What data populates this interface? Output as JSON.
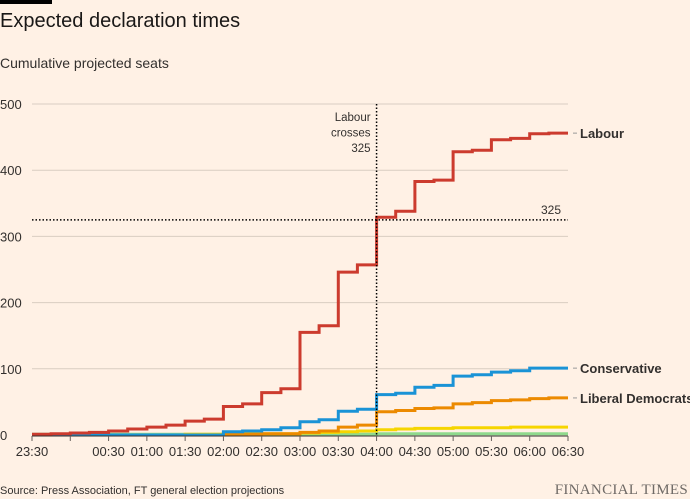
{
  "header": {
    "title": "Expected declaration times",
    "subtitle": "Cumulative projected seats"
  },
  "footer": {
    "source": "Source: Press Association, FT general election projections",
    "logo": "FINANCIAL TIMES"
  },
  "chart_data": {
    "type": "line",
    "step": true,
    "title": "Expected declaration times",
    "subtitle": "Cumulative projected seats",
    "xlabel": "",
    "ylabel": "Cumulative projected seats",
    "ylim": [
      0,
      500
    ],
    "yticks": [
      "0",
      "100",
      "200",
      "300",
      "400",
      "500"
    ],
    "ytick_values": [
      0,
      100,
      200,
      300,
      400,
      500
    ],
    "xticks": [
      "23:30",
      "",
      "00:30",
      "01:00",
      "01:30",
      "02:00",
      "02:30",
      "03:00",
      "03:30",
      "04:00",
      "04:30",
      "05:00",
      "05:30",
      "06:00",
      "06:30"
    ],
    "x_interval_minutes": 15,
    "x_start": "23:30",
    "x_end": "06:30",
    "grid": true,
    "reference_line": {
      "value": 325,
      "label": "325"
    },
    "annotation": {
      "time": "04:00",
      "lines": [
        "Labour",
        "crosses",
        "325"
      ]
    },
    "series": [
      {
        "name": "Labour",
        "color": "#cc3b2e",
        "labeled": true,
        "values": [
          1,
          2,
          3,
          4,
          6,
          9,
          12,
          15,
          21,
          24,
          43,
          47,
          64,
          70,
          155,
          165,
          246,
          257,
          329,
          338,
          383,
          385,
          428,
          430,
          446,
          448,
          455,
          456
        ]
      },
      {
        "name": "Conservative",
        "color": "#1a93d6",
        "labeled": true,
        "values": [
          0,
          0,
          0,
          0,
          0,
          0,
          0,
          0,
          0,
          0,
          5,
          6,
          8,
          11,
          20,
          23,
          36,
          39,
          61,
          63,
          72,
          75,
          89,
          91,
          95,
          97,
          101,
          101
        ]
      },
      {
        "name": "Liberal Democrats",
        "color": "#ec8a00",
        "labeled": true,
        "values": [
          0,
          0,
          0,
          0,
          0,
          0,
          0,
          0,
          0,
          0,
          1,
          1,
          2,
          2,
          4,
          6,
          12,
          15,
          35,
          37,
          40,
          41,
          47,
          49,
          52,
          53,
          55,
          56
        ]
      },
      {
        "name": "",
        "color": "#f6d500",
        "labeled": false,
        "values": [
          0,
          0,
          0,
          0,
          0,
          0,
          0,
          0,
          1,
          1,
          1,
          2,
          2,
          2,
          3,
          4,
          5,
          6,
          8,
          9,
          10,
          10,
          11,
          11,
          11,
          12,
          12,
          12
        ]
      },
      {
        "name": "",
        "color": "#8fd98c",
        "labeled": false,
        "values": [
          1,
          1,
          1,
          1,
          1,
          1,
          1,
          1,
          1,
          1,
          1,
          1,
          1,
          1,
          1,
          1,
          1,
          1,
          2,
          2,
          2,
          2,
          2,
          2,
          2,
          2,
          2,
          2
        ]
      }
    ],
    "legend": "direct-labels-right"
  }
}
